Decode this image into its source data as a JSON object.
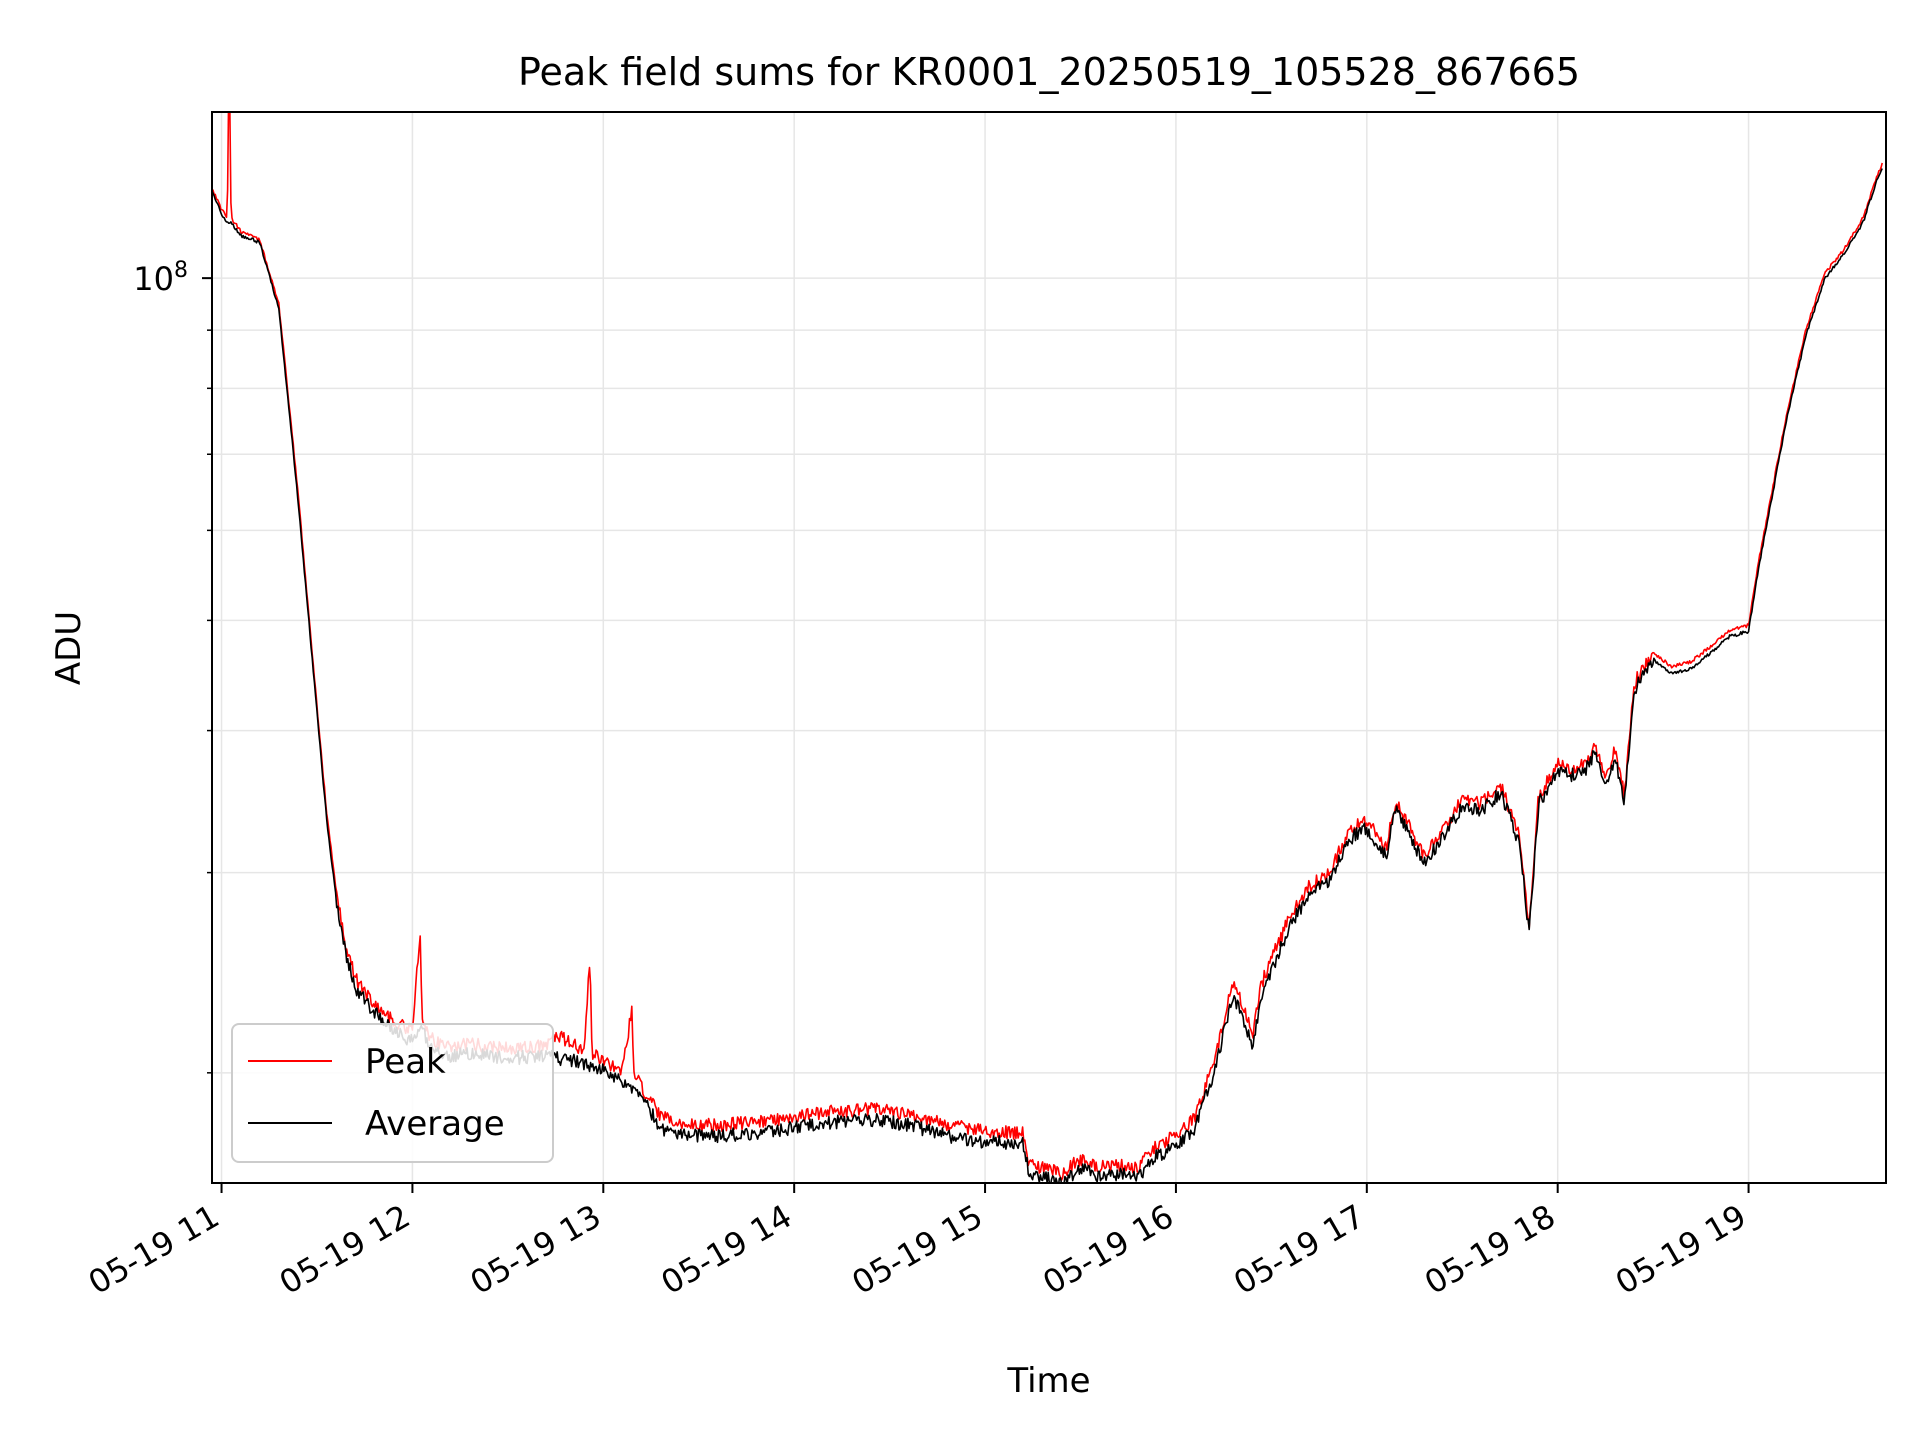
{
  "chart_data": {
    "type": "line",
    "title": "Peak field sums for KR0001_20250519_105528_867665",
    "xlabel": "Time",
    "ylabel": "ADU",
    "x_unit": "hour of 2025-05-19",
    "xlim": [
      10.95,
      19.72
    ],
    "y_scale": "log",
    "ylim": [
      16000000,
      140000000
    ],
    "grid": true,
    "legend_position": "lower-left",
    "x_tick_labels": [
      "05-19 11",
      "05-19 12",
      "05-19 13",
      "05-19 14",
      "05-19 15",
      "05-19 16",
      "05-19 17",
      "05-19 18",
      "05-19 19"
    ],
    "x_tick_values": [
      11,
      12,
      13,
      14,
      15,
      16,
      17,
      18,
      19
    ],
    "y_major_ticks": [
      {
        "value": 100000000,
        "base": "10",
        "exp": "8"
      }
    ],
    "y_minor_ticks": [
      20000000,
      30000000,
      40000000,
      50000000,
      60000000,
      70000000,
      80000000,
      90000000
    ],
    "series": [
      {
        "name": "Peak",
        "color": "#ff0000",
        "x": [
          10.95,
          11.0,
          11.03,
          11.04,
          11.05,
          11.1,
          11.2,
          11.3,
          11.4,
          11.5,
          11.55,
          11.6,
          11.65,
          11.7,
          11.8,
          11.9,
          12.0,
          12.04,
          12.05,
          12.1,
          12.2,
          12.3,
          12.5,
          12.7,
          12.75,
          12.9,
          12.93,
          12.94,
          13.0,
          13.1,
          13.15,
          13.16,
          13.2,
          13.3,
          13.4,
          13.6,
          13.8,
          14.0,
          14.2,
          14.4,
          14.6,
          14.8,
          15.0,
          15.2,
          15.23,
          15.3,
          15.4,
          15.5,
          15.6,
          15.7,
          15.8,
          15.9,
          16.0,
          16.1,
          16.2,
          16.3,
          16.35,
          16.4,
          16.45,
          16.5,
          16.6,
          16.7,
          16.8,
          16.9,
          16.95,
          17.0,
          17.1,
          17.15,
          17.2,
          17.3,
          17.4,
          17.5,
          17.6,
          17.7,
          17.8,
          17.85,
          17.9,
          18.0,
          18.1,
          18.15,
          18.2,
          18.25,
          18.3,
          18.35,
          18.4,
          18.5,
          18.6,
          18.7,
          18.8,
          18.9,
          19.0,
          19.05,
          19.1,
          19.2,
          19.3,
          19.4,
          19.5,
          19.6,
          19.68,
          19.7
        ],
        "y": [
          120000000,
          115000000,
          113000000,
          160000000,
          113000000,
          110000000,
          108000000,
          95000000,
          65000000,
          42000000,
          34000000,
          29000000,
          26000000,
          24200000,
          23000000,
          22200000,
          21800000,
          26500000,
          22400000,
          21400000,
          21100000,
          21200000,
          21000000,
          21100000,
          21600000,
          20900000,
          25200000,
          20800000,
          20500000,
          20100000,
          22700000,
          20000000,
          19400000,
          18300000,
          18000000,
          18000000,
          18100000,
          18300000,
          18500000,
          18600000,
          18400000,
          18000000,
          17800000,
          17700000,
          16600000,
          16500000,
          16300000,
          16800000,
          16500000,
          16600000,
          16500000,
          17300000,
          17600000,
          18300000,
          20500000,
          24000000,
          23000000,
          21500000,
          24000000,
          25200000,
          27500000,
          29200000,
          30000000,
          32500000,
          33000000,
          33300000,
          31500000,
          34500000,
          33500000,
          31000000,
          32800000,
          34800000,
          34500000,
          35800000,
          32300000,
          27000000,
          35000000,
          37300000,
          37000000,
          37500000,
          38800000,
          36000000,
          38500000,
          35000000,
          44000000,
          46800000,
          45500000,
          46000000,
          47400000,
          49000000,
          49500000,
          56000000,
          62000000,
          76000000,
          90000000,
          101000000,
          106000000,
          113000000,
          124000000,
          126000000
        ]
      },
      {
        "name": "Average",
        "color": "#000000",
        "x": [
          10.95,
          11.0,
          11.03,
          11.05,
          11.1,
          11.2,
          11.3,
          11.4,
          11.5,
          11.55,
          11.6,
          11.65,
          11.7,
          11.8,
          11.9,
          12.0,
          12.05,
          12.1,
          12.2,
          12.3,
          12.5,
          12.7,
          12.9,
          13.0,
          13.1,
          13.2,
          13.3,
          13.4,
          13.6,
          13.8,
          14.0,
          14.2,
          14.4,
          14.6,
          14.8,
          15.0,
          15.2,
          15.23,
          15.3,
          15.4,
          15.5,
          15.6,
          15.7,
          15.8,
          15.9,
          16.0,
          16.1,
          16.2,
          16.3,
          16.35,
          16.4,
          16.45,
          16.5,
          16.6,
          16.7,
          16.8,
          16.9,
          16.95,
          17.0,
          17.1,
          17.15,
          17.2,
          17.3,
          17.4,
          17.5,
          17.6,
          17.7,
          17.8,
          17.85,
          17.9,
          18.0,
          18.1,
          18.15,
          18.2,
          18.25,
          18.3,
          18.35,
          18.4,
          18.5,
          18.6,
          18.7,
          18.8,
          18.9,
          19.0,
          19.05,
          19.1,
          19.2,
          19.3,
          19.4,
          19.5,
          19.6,
          19.68,
          19.7
        ],
        "y": [
          119000000,
          114000000,
          112000000,
          112000000,
          109000000,
          107500000,
          94000000,
          64000000,
          41500000,
          33500000,
          28500000,
          25500000,
          23800000,
          22600000,
          21800000,
          21300000,
          21800000,
          21000000,
          20700000,
          20800000,
          20600000,
          20700000,
          20400000,
          20100000,
          19700000,
          19000000,
          17900000,
          17600000,
          17600000,
          17700000,
          17900000,
          18100000,
          18200000,
          18000000,
          17600000,
          17400000,
          17300000,
          16300000,
          16200000,
          16000000,
          16500000,
          16200000,
          16300000,
          16200000,
          16900000,
          17200000,
          17900000,
          20000000,
          23400000,
          22400000,
          21000000,
          23400000,
          24600000,
          27000000,
          28700000,
          29500000,
          32000000,
          32500000,
          32800000,
          31000000,
          34000000,
          33000000,
          30500000,
          32300000,
          34300000,
          34000000,
          35300000,
          31800000,
          26600000,
          34500000,
          36800000,
          36500000,
          37000000,
          38300000,
          35500000,
          38000000,
          34500000,
          43400000,
          46200000,
          44900000,
          45400000,
          46800000,
          48400000,
          48900000,
          55300000,
          61300000,
          75200000,
          89000000,
          100000000,
          105000000,
          112000000,
          123000000,
          125000000
        ]
      }
    ]
  }
}
